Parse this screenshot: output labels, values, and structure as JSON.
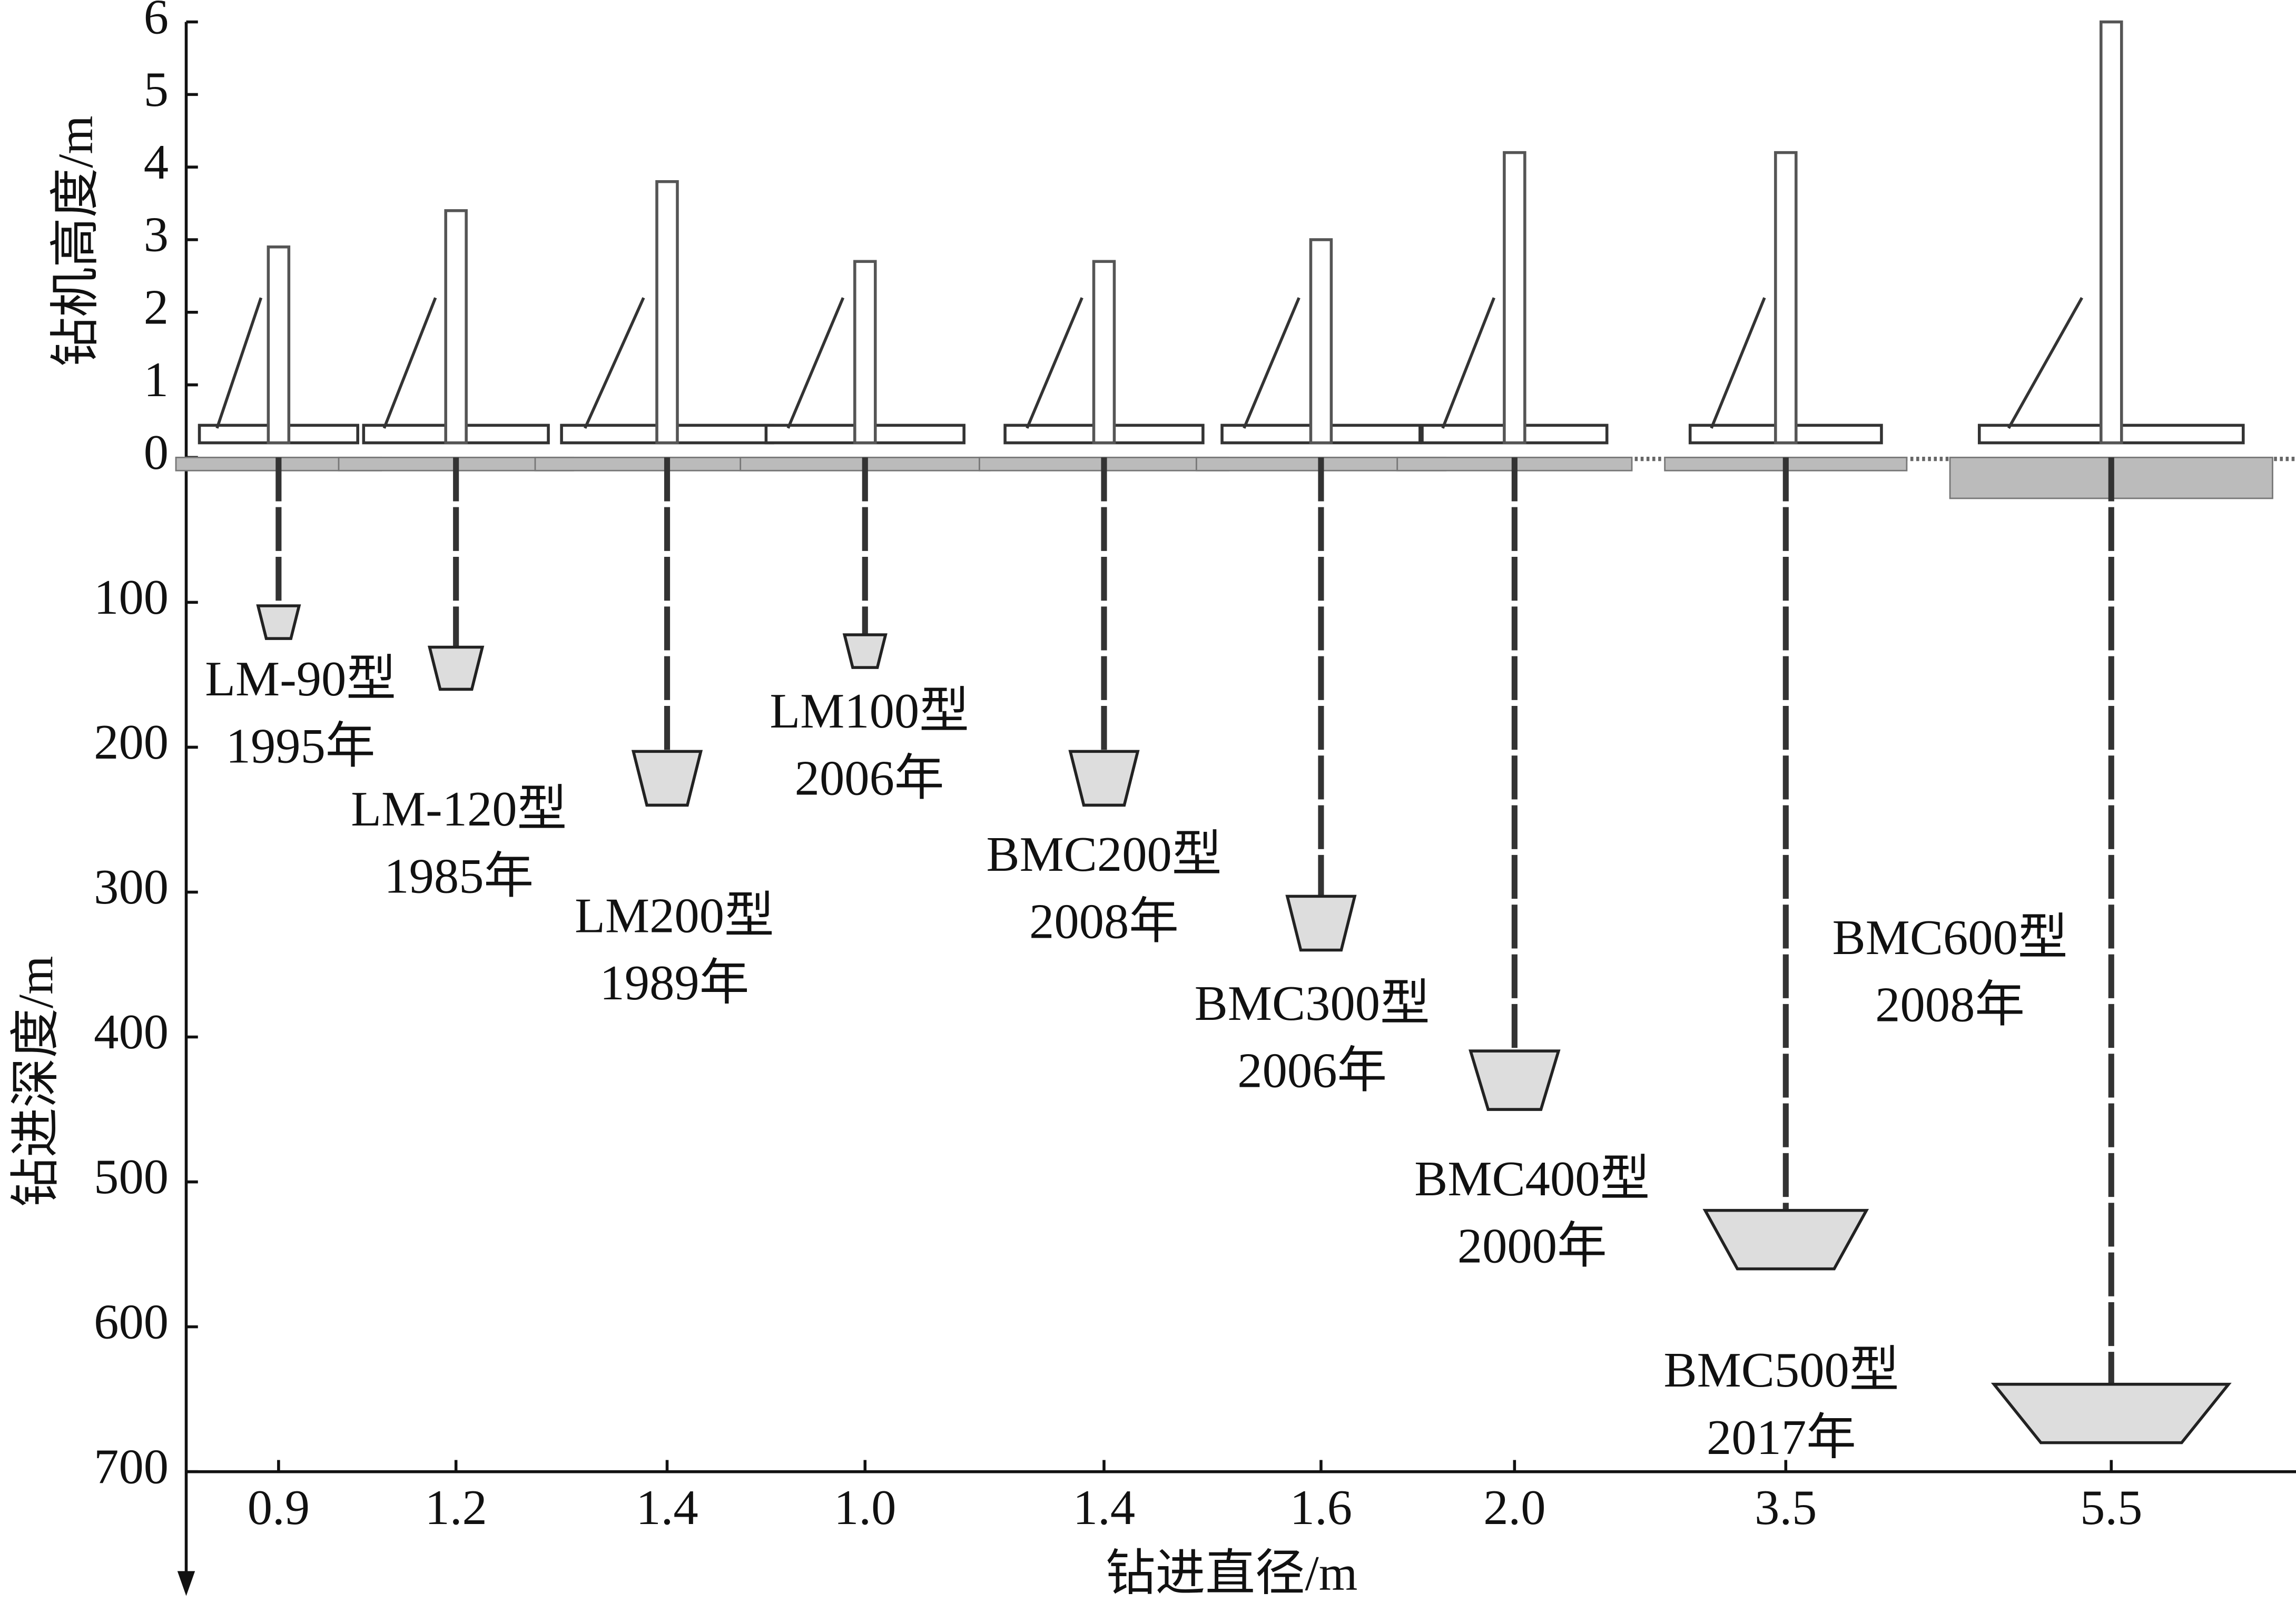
{
  "chart_data": [
    {
      "type": "bar",
      "ylabel": "钻机高度/m",
      "ylim": [
        0,
        6
      ],
      "yticks": [
        0,
        1,
        2,
        3,
        4,
        5,
        6
      ],
      "values": [
        2.9,
        3.4,
        3.8,
        2.7,
        2.7,
        3.0,
        4.2,
        4.2,
        6
      ],
      "color": "#555555"
    },
    {
      "type": "bar",
      "ylabel": "钻进深度/m",
      "xlabel": "钻进直径/m",
      "ylim": [
        0,
        700
      ],
      "yticks": [
        100,
        200,
        300,
        400,
        500,
        600,
        700
      ],
      "categories": [
        "0.9",
        "1.2",
        "1.4",
        "1.0",
        "1.4",
        "1.6",
        "2.0",
        "3.5",
        "5.5"
      ],
      "values": [
        125,
        160,
        240,
        145,
        240,
        340,
        450,
        560,
        680
      ],
      "models": [
        "LM-90型",
        "LM-120型",
        "LM200型",
        "LM100型",
        "BMC200型",
        "BMC300型",
        "BMC400型",
        "BMC500型",
        "BMC600型"
      ],
      "years": [
        "1995年",
        "1985年",
        "1989年",
        "2006年",
        "2008年",
        "2006年",
        "2000年",
        "2017年",
        "2008年"
      ],
      "color": "#333333"
    }
  ]
}
